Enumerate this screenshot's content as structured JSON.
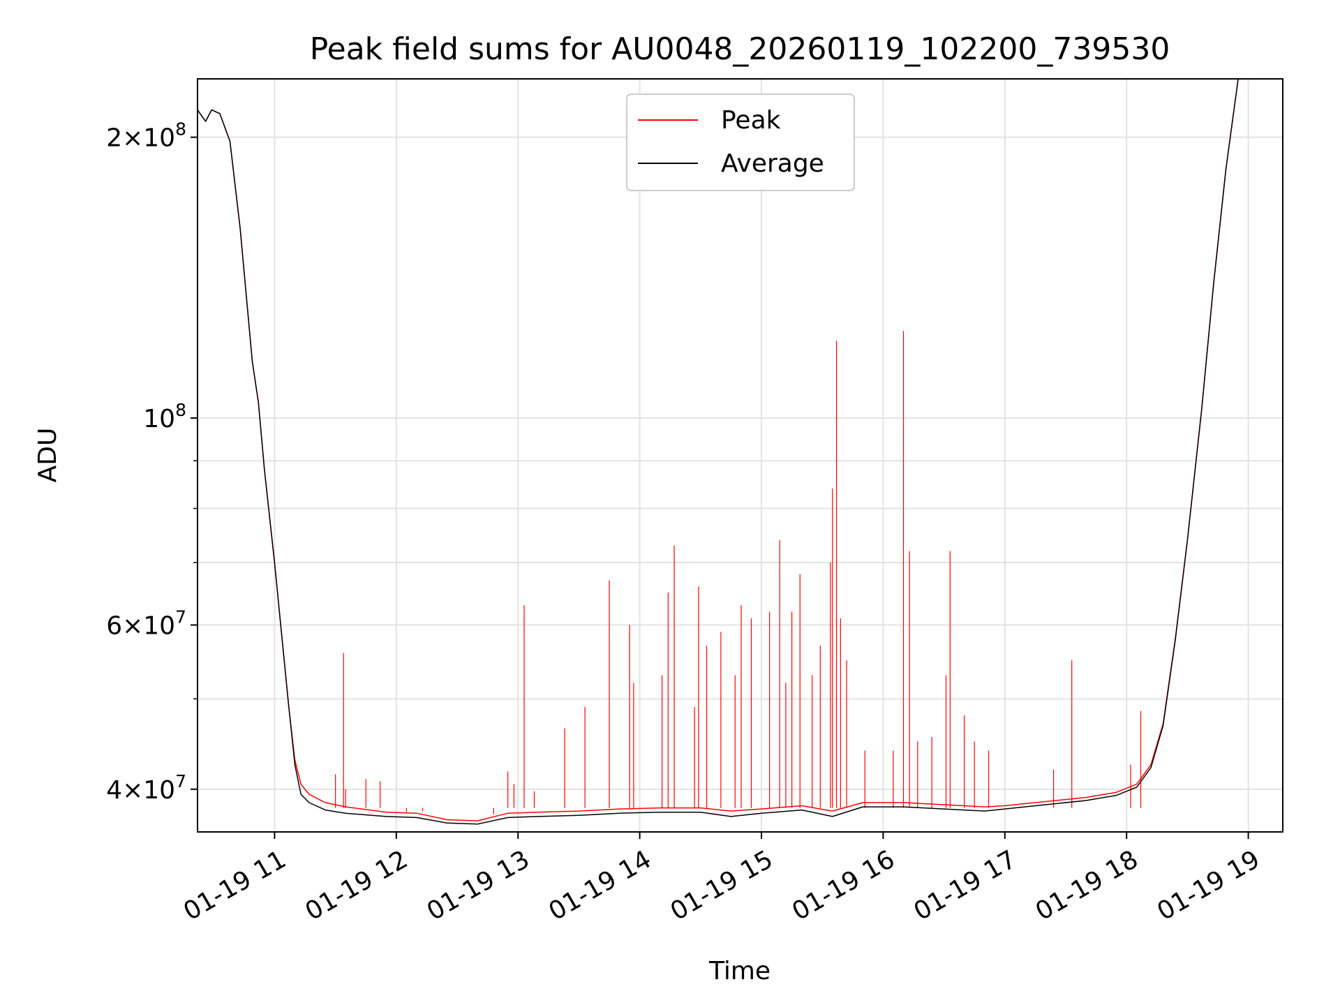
{
  "chart_data": {
    "type": "line",
    "title": "Peak field sums for AU0048_20260119_102200_739530",
    "xlabel": "Time",
    "ylabel": "ADU",
    "x_scale": "time",
    "y_scale": "log",
    "xlim": [
      "2026-01-19 10:22",
      "2026-01-19 19:17"
    ],
    "ylim": [
      36000000,
      231000000
    ],
    "x_ticks": [
      {
        "value": "2026-01-19 11:00",
        "label": "01-19 11"
      },
      {
        "value": "2026-01-19 12:00",
        "label": "01-19 12"
      },
      {
        "value": "2026-01-19 13:00",
        "label": "01-19 13"
      },
      {
        "value": "2026-01-19 14:00",
        "label": "01-19 14"
      },
      {
        "value": "2026-01-19 15:00",
        "label": "01-19 15"
      },
      {
        "value": "2026-01-19 16:00",
        "label": "01-19 16"
      },
      {
        "value": "2026-01-19 17:00",
        "label": "01-19 17"
      },
      {
        "value": "2026-01-19 18:00",
        "label": "01-19 18"
      },
      {
        "value": "2026-01-19 19:00",
        "label": "01-19 19"
      }
    ],
    "y_ticks": [
      {
        "value": 40000000,
        "base": "4",
        "mult": "×",
        "pow": "10",
        "exp": "7"
      },
      {
        "value": 60000000,
        "base": "6",
        "mult": "×",
        "pow": "10",
        "exp": "7"
      },
      {
        "value": 100000000,
        "base": "",
        "mult": "",
        "pow": "10",
        "exp": "8"
      },
      {
        "value": 200000000,
        "base": "2",
        "mult": "×",
        "pow": "10",
        "exp": "8"
      }
    ],
    "y_minor_ticks": [
      50000000,
      70000000,
      80000000,
      90000000
    ],
    "grid": true,
    "legend_position": "top-center",
    "series": [
      {
        "name": "Peak",
        "color": "#ff0000",
        "points": [
          [
            "2026-01-19 10:22",
            214000000
          ],
          [
            "2026-01-19 10:26",
            208000000
          ],
          [
            "2026-01-19 10:29",
            214000000
          ],
          [
            "2026-01-19 10:33",
            212000000
          ],
          [
            "2026-01-19 10:38",
            198000000
          ],
          [
            "2026-01-19 10:43",
            160000000
          ],
          [
            "2026-01-19 10:49",
            115000000
          ],
          [
            "2026-01-19 10:52",
            104000000
          ],
          [
            "2026-01-19 10:55",
            88000000
          ],
          [
            "2026-01-19 11:00",
            70000000
          ],
          [
            "2026-01-19 11:03",
            60000000
          ],
          [
            "2026-01-19 11:07",
            49000000
          ],
          [
            "2026-01-19 11:10",
            43000000
          ],
          [
            "2026-01-19 11:13",
            40500000
          ],
          [
            "2026-01-19 11:17",
            39500000
          ],
          [
            "2026-01-19 11:25",
            38700000
          ],
          [
            "2026-01-19 11:35",
            38300000
          ],
          [
            "2026-01-19 11:55",
            37800000
          ],
          [
            "2026-01-19 12:10",
            37700000
          ],
          [
            "2026-01-19 12:25",
            37100000
          ],
          [
            "2026-01-19 12:40",
            37000000
          ],
          [
            "2026-01-19 12:55",
            37700000
          ],
          [
            "2026-01-19 13:10",
            37800000
          ],
          [
            "2026-01-19 13:30",
            37900000
          ],
          [
            "2026-01-19 13:50",
            38100000
          ],
          [
            "2026-01-19 14:10",
            38200000
          ],
          [
            "2026-01-19 14:30",
            38200000
          ],
          [
            "2026-01-19 14:45",
            37900000
          ],
          [
            "2026-01-19 15:00",
            38100000
          ],
          [
            "2026-01-19 15:20",
            38400000
          ],
          [
            "2026-01-19 15:35",
            37900000
          ],
          [
            "2026-01-19 15:50",
            38700000
          ],
          [
            "2026-01-19 16:10",
            38700000
          ],
          [
            "2026-01-19 16:30",
            38500000
          ],
          [
            "2026-01-19 16:50",
            38300000
          ],
          [
            "2026-01-19 17:00",
            38400000
          ],
          [
            "2026-01-19 17:20",
            38800000
          ],
          [
            "2026-01-19 17:40",
            39200000
          ],
          [
            "2026-01-19 17:55",
            39700000
          ],
          [
            "2026-01-19 18:05",
            40500000
          ],
          [
            "2026-01-19 18:12",
            42500000
          ],
          [
            "2026-01-19 18:18",
            47000000
          ],
          [
            "2026-01-19 18:24",
            58000000
          ],
          [
            "2026-01-19 18:30",
            74000000
          ],
          [
            "2026-01-19 18:37",
            102000000
          ],
          [
            "2026-01-19 18:43",
            140000000
          ],
          [
            "2026-01-19 18:49",
            185000000
          ],
          [
            "2026-01-19 18:55",
            231000000
          ]
        ],
        "spikes": [
          [
            "2026-01-19 11:30",
            41500000
          ],
          [
            "2026-01-19 11:35",
            40000000
          ],
          [
            "2026-01-19 11:34",
            56000000
          ],
          [
            "2026-01-19 11:45",
            41000000
          ],
          [
            "2026-01-19 11:52",
            40800000
          ],
          [
            "2026-01-19 12:05",
            37800000
          ],
          [
            "2026-01-19 12:13",
            37900000
          ],
          [
            "2026-01-19 12:48",
            37600000
          ],
          [
            "2026-01-19 12:55",
            41800000
          ],
          [
            "2026-01-19 12:58",
            40500000
          ],
          [
            "2026-01-19 13:03",
            63000000
          ],
          [
            "2026-01-19 13:08",
            39800000
          ],
          [
            "2026-01-19 13:23",
            46500000
          ],
          [
            "2026-01-19 13:33",
            49000000
          ],
          [
            "2026-01-19 13:45",
            67000000
          ],
          [
            "2026-01-19 13:55",
            60000000
          ],
          [
            "2026-01-19 13:57",
            52000000
          ],
          [
            "2026-01-19 14:11",
            53000000
          ],
          [
            "2026-01-19 14:14",
            65000000
          ],
          [
            "2026-01-19 14:17",
            73000000
          ],
          [
            "2026-01-19 14:27",
            49000000
          ],
          [
            "2026-01-19 14:29",
            66000000
          ],
          [
            "2026-01-19 14:33",
            57000000
          ],
          [
            "2026-01-19 14:40",
            59000000
          ],
          [
            "2026-01-19 14:47",
            53000000
          ],
          [
            "2026-01-19 14:50",
            63000000
          ],
          [
            "2026-01-19 14:55",
            61000000
          ],
          [
            "2026-01-19 15:04",
            62000000
          ],
          [
            "2026-01-19 15:09",
            74000000
          ],
          [
            "2026-01-19 15:12",
            52000000
          ],
          [
            "2026-01-19 15:15",
            62000000
          ],
          [
            "2026-01-19 15:19",
            68000000
          ],
          [
            "2026-01-19 15:25",
            53000000
          ],
          [
            "2026-01-19 15:29",
            57000000
          ],
          [
            "2026-01-19 15:34",
            70000000
          ],
          [
            "2026-01-19 15:35",
            84000000
          ],
          [
            "2026-01-19 15:37",
            121000000
          ],
          [
            "2026-01-19 15:39",
            61000000
          ],
          [
            "2026-01-19 15:42",
            55000000
          ],
          [
            "2026-01-19 15:51",
            44000000
          ],
          [
            "2026-01-19 16:05",
            44000000
          ],
          [
            "2026-01-19 16:10",
            124000000
          ],
          [
            "2026-01-19 16:13",
            72000000
          ],
          [
            "2026-01-19 16:17",
            45000000
          ],
          [
            "2026-01-19 16:24",
            45500000
          ],
          [
            "2026-01-19 16:31",
            53000000
          ],
          [
            "2026-01-19 16:33",
            72000000
          ],
          [
            "2026-01-19 16:40",
            48000000
          ],
          [
            "2026-01-19 16:45",
            45000000
          ],
          [
            "2026-01-19 16:52",
            44000000
          ],
          [
            "2026-01-19 17:24",
            42000000
          ],
          [
            "2026-01-19 17:33",
            55000000
          ],
          [
            "2026-01-19 18:02",
            42500000
          ],
          [
            "2026-01-19 18:07",
            48500000
          ]
        ]
      },
      {
        "name": "Average",
        "color": "#000000",
        "points": [
          [
            "2026-01-19 10:22",
            214000000
          ],
          [
            "2026-01-19 10:26",
            208000000
          ],
          [
            "2026-01-19 10:29",
            214000000
          ],
          [
            "2026-01-19 10:33",
            212000000
          ],
          [
            "2026-01-19 10:38",
            198000000
          ],
          [
            "2026-01-19 10:43",
            160000000
          ],
          [
            "2026-01-19 10:49",
            115000000
          ],
          [
            "2026-01-19 10:52",
            104000000
          ],
          [
            "2026-01-19 10:55",
            88000000
          ],
          [
            "2026-01-19 11:00",
            70000000
          ],
          [
            "2026-01-19 11:03",
            60000000
          ],
          [
            "2026-01-19 11:07",
            49000000
          ],
          [
            "2026-01-19 11:10",
            42500000
          ],
          [
            "2026-01-19 11:13",
            39500000
          ],
          [
            "2026-01-19 11:17",
            38700000
          ],
          [
            "2026-01-19 11:25",
            38000000
          ],
          [
            "2026-01-19 11:35",
            37700000
          ],
          [
            "2026-01-19 11:55",
            37400000
          ],
          [
            "2026-01-19 12:10",
            37300000
          ],
          [
            "2026-01-19 12:25",
            36800000
          ],
          [
            "2026-01-19 12:40",
            36700000
          ],
          [
            "2026-01-19 12:55",
            37300000
          ],
          [
            "2026-01-19 13:10",
            37400000
          ],
          [
            "2026-01-19 13:30",
            37500000
          ],
          [
            "2026-01-19 13:50",
            37700000
          ],
          [
            "2026-01-19 14:10",
            37800000
          ],
          [
            "2026-01-19 14:30",
            37800000
          ],
          [
            "2026-01-19 14:45",
            37400000
          ],
          [
            "2026-01-19 15:00",
            37700000
          ],
          [
            "2026-01-19 15:20",
            38000000
          ],
          [
            "2026-01-19 15:35",
            37400000
          ],
          [
            "2026-01-19 15:50",
            38300000
          ],
          [
            "2026-01-19 16:10",
            38300000
          ],
          [
            "2026-01-19 16:30",
            38100000
          ],
          [
            "2026-01-19 16:50",
            37900000
          ],
          [
            "2026-01-19 17:00",
            38100000
          ],
          [
            "2026-01-19 17:20",
            38500000
          ],
          [
            "2026-01-19 17:40",
            38900000
          ],
          [
            "2026-01-19 17:55",
            39400000
          ],
          [
            "2026-01-19 18:05",
            40200000
          ],
          [
            "2026-01-19 18:12",
            42200000
          ],
          [
            "2026-01-19 18:18",
            46800000
          ],
          [
            "2026-01-19 18:24",
            57800000
          ],
          [
            "2026-01-19 18:30",
            74000000
          ],
          [
            "2026-01-19 18:37",
            102000000
          ],
          [
            "2026-01-19 18:43",
            140000000
          ],
          [
            "2026-01-19 18:49",
            185000000
          ],
          [
            "2026-01-19 18:55",
            231000000
          ]
        ]
      }
    ]
  }
}
